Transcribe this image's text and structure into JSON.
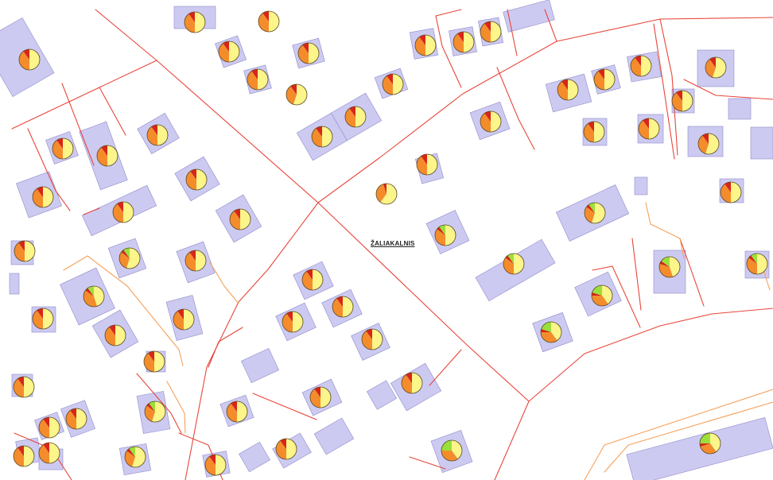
{
  "map": {
    "district_label": "ŽALIAKALNIS"
  },
  "colors": {
    "background": "#ffffff",
    "building_fill": "#cdcaf2",
    "building_stroke": "#8f8ac8",
    "parcel_line": "#e8463a",
    "path_line": "#f5a15a",
    "pie_yellow": "#fbf58a",
    "pie_orange": "#f48c2c",
    "pie_red": "#d8251a",
    "pie_green": "#9be03a",
    "pie_outline": "#5a4a20"
  },
  "pie_categories": [
    "yellow",
    "orange",
    "red",
    "green"
  ]
}
